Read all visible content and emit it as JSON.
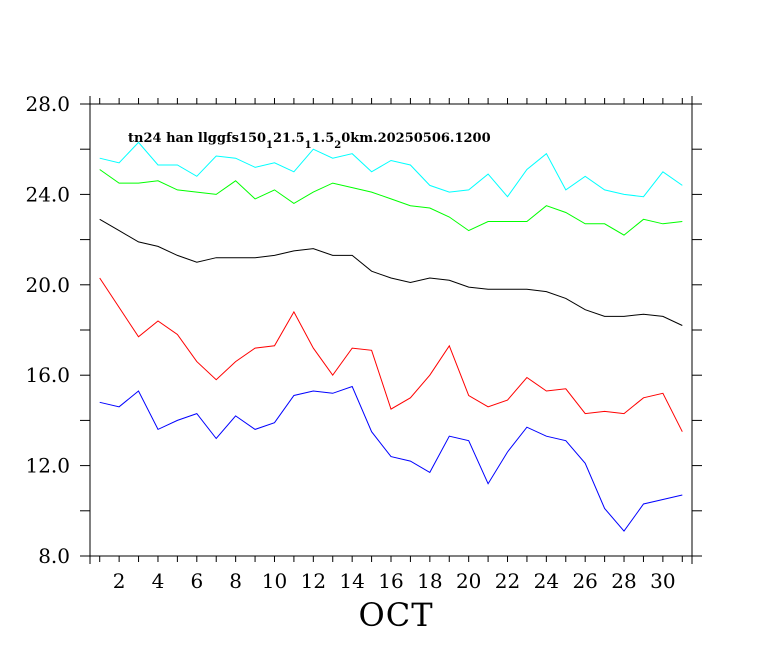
{
  "chart_data": {
    "type": "line",
    "title": {
      "parts": [
        {
          "text": "tn24 han llggfs150",
          "sub": false
        },
        {
          "text": "1",
          "sub": true
        },
        {
          "text": "21.5",
          "sub": false
        },
        {
          "text": "1",
          "sub": true
        },
        {
          "text": "1.5",
          "sub": false
        },
        {
          "text": "2",
          "sub": true
        },
        {
          "text": "0km.20250506.1200",
          "sub": false
        }
      ]
    },
    "xlabel": "OCT",
    "ylabel": "",
    "xlim": [
      0.5,
      31.5
    ],
    "ylim": [
      8,
      28
    ],
    "x_ticks": [
      1,
      2,
      3,
      4,
      5,
      6,
      7,
      8,
      9,
      10,
      11,
      12,
      13,
      14,
      15,
      16,
      17,
      18,
      19,
      20,
      21,
      22,
      23,
      24,
      25,
      26,
      27,
      28,
      29,
      30,
      31
    ],
    "x_tick_labels": [
      "2",
      "4",
      "6",
      "8",
      "10",
      "12",
      "14",
      "16",
      "18",
      "20",
      "22",
      "24",
      "26",
      "28",
      "30"
    ],
    "x_tick_label_values": [
      2,
      4,
      6,
      8,
      10,
      12,
      14,
      16,
      18,
      20,
      22,
      24,
      26,
      28,
      30
    ],
    "y_ticks": [
      8,
      10,
      12,
      14,
      16,
      18,
      20,
      22,
      24,
      26,
      28
    ],
    "y_tick_labels": [
      "8.0",
      "12.0",
      "16.0",
      "20.0",
      "24.0",
      "28.0"
    ],
    "y_tick_label_values": [
      8,
      12,
      16,
      20,
      24,
      28
    ],
    "grid": false,
    "x": [
      1,
      2,
      3,
      4,
      5,
      6,
      7,
      8,
      9,
      10,
      11,
      12,
      13,
      14,
      15,
      16,
      17,
      18,
      19,
      20,
      21,
      22,
      23,
      24,
      25,
      26,
      27,
      28,
      29,
      30,
      31
    ],
    "series": [
      {
        "color": "#00ffff",
        "values": [
          25.6,
          25.4,
          26.3,
          25.3,
          25.3,
          24.8,
          25.7,
          25.6,
          25.2,
          25.4,
          25.0,
          26.0,
          25.6,
          25.8,
          25.0,
          25.5,
          25.3,
          24.4,
          24.1,
          24.2,
          24.9,
          23.9,
          25.1,
          25.8,
          24.2,
          24.8,
          24.2,
          24.0,
          23.9,
          25.0,
          24.4
        ]
      },
      {
        "color": "#00ff00",
        "values": [
          25.1,
          24.5,
          24.5,
          24.6,
          24.2,
          24.1,
          24.0,
          24.6,
          23.8,
          24.2,
          23.6,
          24.1,
          24.5,
          24.3,
          24.1,
          23.8,
          23.5,
          23.4,
          23.0,
          22.4,
          22.8,
          22.8,
          22.8,
          23.5,
          23.2,
          22.7,
          22.7,
          22.2,
          22.9,
          22.7,
          22.8
        ]
      },
      {
        "color": "#000000",
        "values": [
          22.9,
          22.4,
          21.9,
          21.7,
          21.3,
          21.0,
          21.2,
          21.2,
          21.2,
          21.3,
          21.5,
          21.6,
          21.3,
          21.3,
          20.6,
          20.3,
          20.1,
          20.3,
          20.2,
          19.9,
          19.8,
          19.8,
          19.8,
          19.7,
          19.4,
          18.9,
          18.6,
          18.6,
          18.7,
          18.6,
          18.2
        ]
      },
      {
        "color": "#ff0000",
        "values": [
          20.3,
          19.0,
          17.7,
          18.4,
          17.8,
          16.6,
          15.8,
          16.6,
          17.2,
          17.3,
          18.8,
          17.2,
          16.0,
          17.2,
          17.1,
          14.5,
          15.0,
          16.0,
          17.3,
          15.1,
          14.6,
          14.9,
          15.9,
          15.3,
          15.4,
          14.3,
          14.4,
          14.3,
          15.0,
          15.2,
          13.5
        ]
      },
      {
        "color": "#0000ff",
        "values": [
          14.8,
          14.6,
          15.3,
          13.6,
          14.0,
          14.3,
          13.2,
          14.2,
          13.6,
          13.9,
          15.1,
          15.3,
          15.2,
          15.5,
          13.5,
          12.4,
          12.2,
          11.7,
          13.3,
          13.1,
          11.2,
          12.6,
          13.7,
          13.3,
          13.1,
          12.1,
          10.1,
          9.1,
          10.3,
          10.5,
          10.7
        ]
      }
    ]
  }
}
